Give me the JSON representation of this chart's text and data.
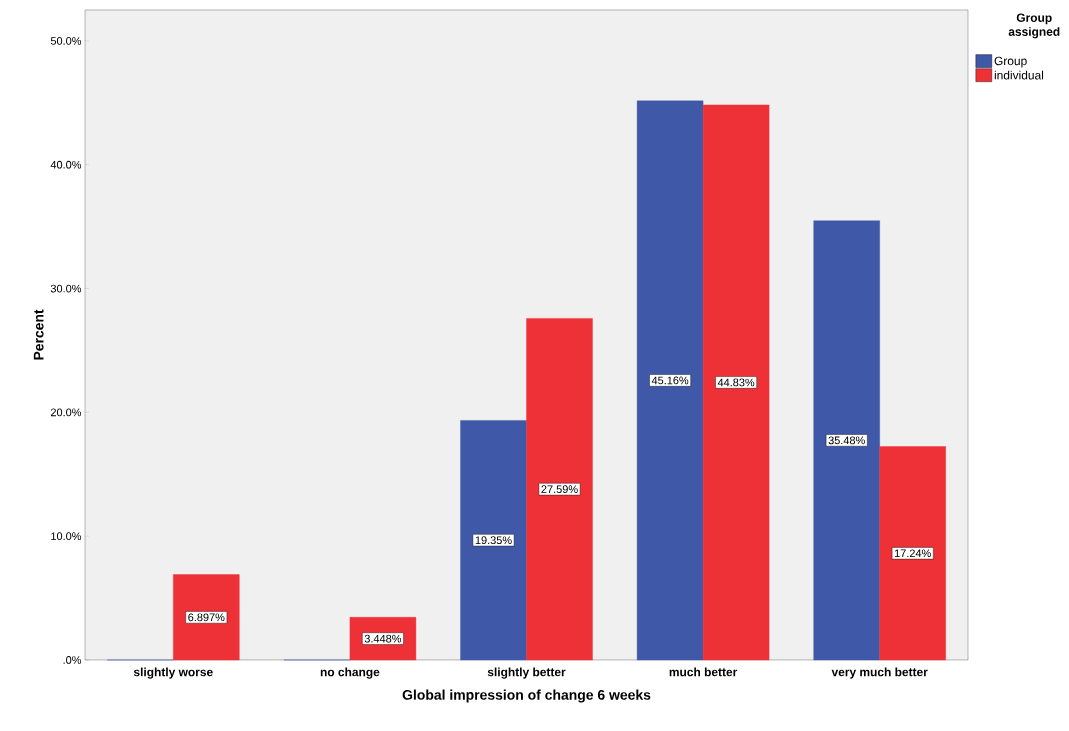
{
  "chart_data": {
    "type": "bar",
    "xlabel": "Global impression of change 6 weeks",
    "ylabel": "Percent",
    "legend_title": "Group assigned",
    "categories": [
      "slightly worse",
      "no change",
      "slightly better",
      "much better",
      "very much better"
    ],
    "series": [
      {
        "name": "Group",
        "color": "#3f58a8",
        "values": [
          0,
          0,
          19.35,
          45.16,
          35.48
        ],
        "value_labels": [
          null,
          null,
          "19.35%",
          "45.16%",
          "35.48%"
        ]
      },
      {
        "name": "individual",
        "color": "#ee3137",
        "values": [
          6.897,
          3.448,
          27.59,
          44.83,
          17.24
        ],
        "value_labels": [
          "6.897%",
          "3.448%",
          "27.59%",
          "44.83%",
          "17.24%"
        ]
      }
    ],
    "ylim": [
      0,
      52.5
    ],
    "yticks": [
      {
        "value": 0,
        "label": ".0%"
      },
      {
        "value": 10,
        "label": "10.0%"
      },
      {
        "value": 20,
        "label": "20.0%"
      },
      {
        "value": 30,
        "label": "30.0%"
      },
      {
        "value": 40,
        "label": "40.0%"
      },
      {
        "value": 50,
        "label": "50.0%"
      }
    ],
    "legend": "right",
    "grid": false
  }
}
